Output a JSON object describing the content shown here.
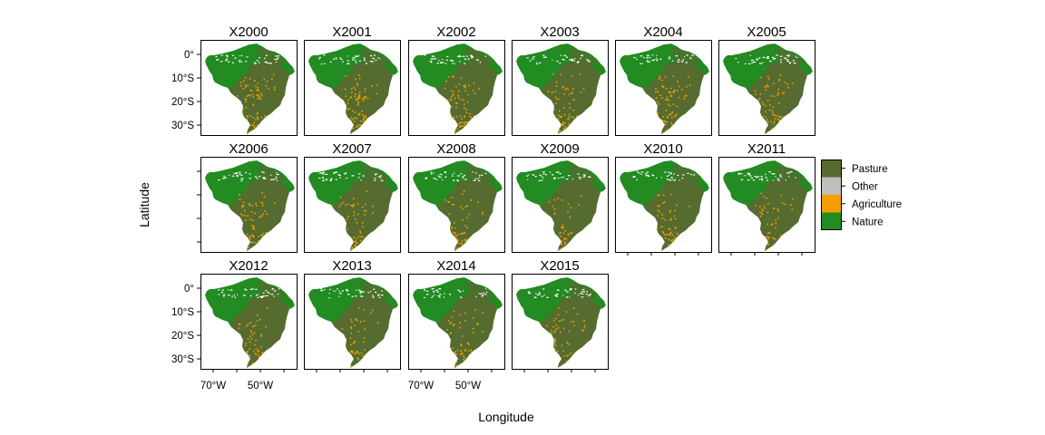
{
  "figure": {
    "xlabel": "Longitude",
    "ylabel": "Latitude"
  },
  "panels": [
    {
      "title": "X2000",
      "agri_share": 0.22
    },
    {
      "title": "X2001",
      "agri_share": 0.22
    },
    {
      "title": "X2002",
      "agri_share": 0.22
    },
    {
      "title": "X2003",
      "agri_share": 0.21
    },
    {
      "title": "X2004",
      "agri_share": 0.2
    },
    {
      "title": "X2005",
      "agri_share": 0.19
    },
    {
      "title": "X2006",
      "agri_share": 0.18
    },
    {
      "title": "X2007",
      "agri_share": 0.17
    },
    {
      "title": "X2008",
      "agri_share": 0.17
    },
    {
      "title": "X2009",
      "agri_share": 0.16
    },
    {
      "title": "X2010",
      "agri_share": 0.16
    },
    {
      "title": "X2011",
      "agri_share": 0.16
    },
    {
      "title": "X2012",
      "agri_share": 0.15
    },
    {
      "title": "X2013",
      "agri_share": 0.15
    },
    {
      "title": "X2014",
      "agri_share": 0.14
    },
    {
      "title": "X2015",
      "agri_share": 0.14
    }
  ],
  "y_ticks": [
    "0°",
    "10°S",
    "20°S",
    "30°S"
  ],
  "x_ticks": [
    "70°W",
    "50°W"
  ],
  "legend": [
    {
      "label": "Pasture",
      "color": "#556b2f"
    },
    {
      "label": "Other",
      "color": "#bebebe"
    },
    {
      "label": "Agriculture",
      "color": "#f29e00"
    },
    {
      "label": "Nature",
      "color": "#228b22"
    }
  ],
  "colors": {
    "nature": "#228b22",
    "pasture": "#556b2f",
    "agriculture": "#f29e00",
    "other": "#bebebe"
  }
}
